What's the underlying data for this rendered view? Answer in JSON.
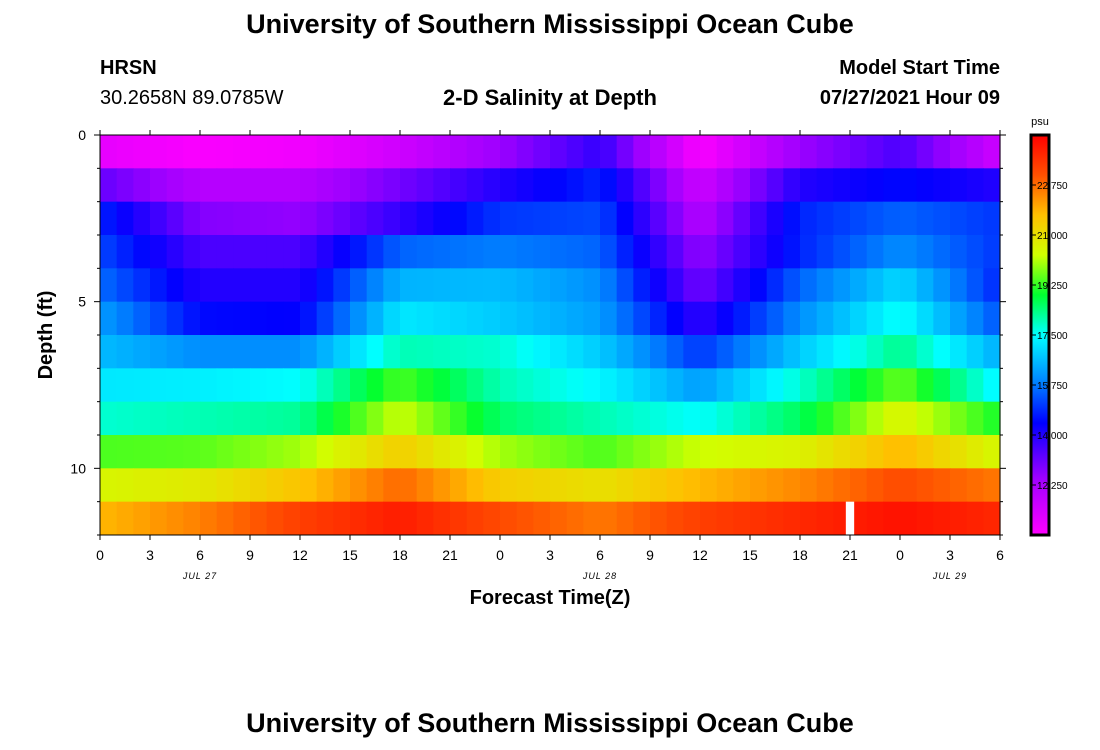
{
  "header": {
    "title": "University of Southern Mississippi Ocean Cube",
    "station": "HRSN",
    "coords": "30.2658N  89.0785W",
    "plot_title": "2-D Salinity at Depth",
    "model_label": "Model Start Time",
    "model_time": "07/27/2021 Hour 09"
  },
  "footer": {
    "title": "University of Southern Mississippi Ocean Cube"
  },
  "chart_data": {
    "type": "heatmap",
    "title": "2-D Salinity at Depth",
    "xlabel": "Forecast Time(Z)",
    "ylabel": "Depth (ft)",
    "x_hours": [
      0,
      54
    ],
    "ylim": [
      0,
      12
    ],
    "x_tick_labels": [
      "0",
      "3",
      "6",
      "9",
      "12",
      "15",
      "18",
      "21",
      "0",
      "3",
      "6",
      "9",
      "12",
      "15",
      "18",
      "21",
      "0",
      "3",
      "6"
    ],
    "y_tick_labels": [
      "0",
      "5",
      "10"
    ],
    "date_labels": [
      {
        "hour": 6,
        "text": "JUL 27"
      },
      {
        "hour": 30,
        "text": "JUL 28"
      },
      {
        "hour": 51,
        "text": "JUL 29"
      }
    ],
    "colorbar": {
      "unit": "psu",
      "range": [
        10.5,
        24.5
      ],
      "tick_labels": [
        "22.750",
        "21.000",
        "19.250",
        "17.500",
        "15.750",
        "14.000",
        "12.250"
      ],
      "tick_values": [
        22.75,
        21.0,
        19.25,
        17.5,
        15.75,
        14.0,
        12.25
      ]
    },
    "depth_levels": [
      0.5,
      1.5,
      2.5,
      3.5,
      4.5,
      5.5,
      6.5,
      7.5,
      8.5,
      9.5,
      10.5,
      11.5
    ],
    "series": [
      {
        "depth": 0.5,
        "hours": [
          0,
          6,
          12,
          18,
          24,
          30,
          36,
          42,
          48,
          54
        ],
        "psu": [
          11.0,
          10.6,
          10.8,
          11.5,
          12.5,
          13.8,
          10.6,
          12.5,
          13.5,
          11.5
        ]
      },
      {
        "depth": 1.5,
        "hours": [
          0,
          6,
          12,
          18,
          24,
          30,
          36,
          42,
          48,
          54
        ],
        "psu": [
          13.2,
          12.0,
          12.0,
          13.0,
          14.0,
          14.8,
          11.5,
          14.0,
          14.5,
          14.0
        ]
      },
      {
        "depth": 2.5,
        "hours": [
          0,
          6,
          12,
          18,
          24,
          30,
          36,
          42,
          48,
          54
        ],
        "psu": [
          14.8,
          12.8,
          12.6,
          13.8,
          15.0,
          15.2,
          12.0,
          14.8,
          15.5,
          15.0
        ]
      },
      {
        "depth": 3.5,
        "hours": [
          0,
          6,
          12,
          18,
          24,
          30,
          36,
          42,
          48,
          54
        ],
        "psu": [
          15.2,
          13.5,
          13.5,
          15.5,
          15.8,
          15.5,
          12.6,
          14.8,
          16.0,
          15.0
        ]
      },
      {
        "depth": 4.5,
        "hours": [
          0,
          6,
          12,
          18,
          24,
          30,
          36,
          42,
          48,
          54
        ],
        "psu": [
          15.6,
          14.0,
          14.0,
          16.5,
          16.6,
          16.0,
          13.0,
          15.5,
          17.0,
          14.8
        ]
      },
      {
        "depth": 5.5,
        "hours": [
          0,
          6,
          12,
          18,
          24,
          30,
          36,
          42,
          48,
          54
        ],
        "psu": [
          16.2,
          14.5,
          14.4,
          17.2,
          16.8,
          16.2,
          13.8,
          16.0,
          17.6,
          15.3
        ]
      },
      {
        "depth": 6.5,
        "hours": [
          0,
          6,
          12,
          18,
          24,
          30,
          36,
          42,
          48,
          54
        ],
        "psu": [
          16.6,
          16.0,
          16.0,
          18.0,
          17.8,
          16.8,
          15.0,
          16.8,
          18.3,
          16.4
        ]
      },
      {
        "depth": 7.5,
        "hours": [
          0,
          6,
          12,
          18,
          24,
          30,
          36,
          42,
          48,
          54
        ],
        "psu": [
          17.2,
          17.3,
          17.5,
          19.4,
          18.0,
          17.4,
          16.2,
          17.8,
          19.6,
          17.3
        ]
      },
      {
        "depth": 8.5,
        "hours": [
          0,
          6,
          12,
          18,
          24,
          30,
          36,
          42,
          48,
          54
        ],
        "psu": [
          17.8,
          18.0,
          18.2,
          20.3,
          18.5,
          18.0,
          17.5,
          18.6,
          20.6,
          19.0
        ]
      },
      {
        "depth": 9.5,
        "hours": [
          0,
          6,
          12,
          18,
          24,
          30,
          36,
          42,
          48,
          54
        ],
        "psu": [
          19.4,
          19.5,
          20.0,
          21.4,
          20.0,
          19.4,
          20.3,
          20.6,
          21.8,
          20.4
        ]
      },
      {
        "depth": 10.5,
        "hours": [
          0,
          6,
          12,
          18,
          24,
          30,
          36,
          42,
          48,
          54
        ],
        "psu": [
          20.5,
          20.8,
          21.6,
          22.8,
          21.4,
          21.0,
          21.8,
          22.4,
          23.2,
          22.6
        ]
      },
      {
        "depth": 11.5,
        "hours": [
          0,
          6,
          12,
          18,
          24,
          30,
          36,
          42,
          48,
          54
        ],
        "psu": [
          21.8,
          22.5,
          23.4,
          24.0,
          23.2,
          22.6,
          23.4,
          23.8,
          24.2,
          23.8
        ]
      }
    ],
    "missing_cells": [
      {
        "depth": 11.5,
        "hour": 45
      }
    ]
  }
}
